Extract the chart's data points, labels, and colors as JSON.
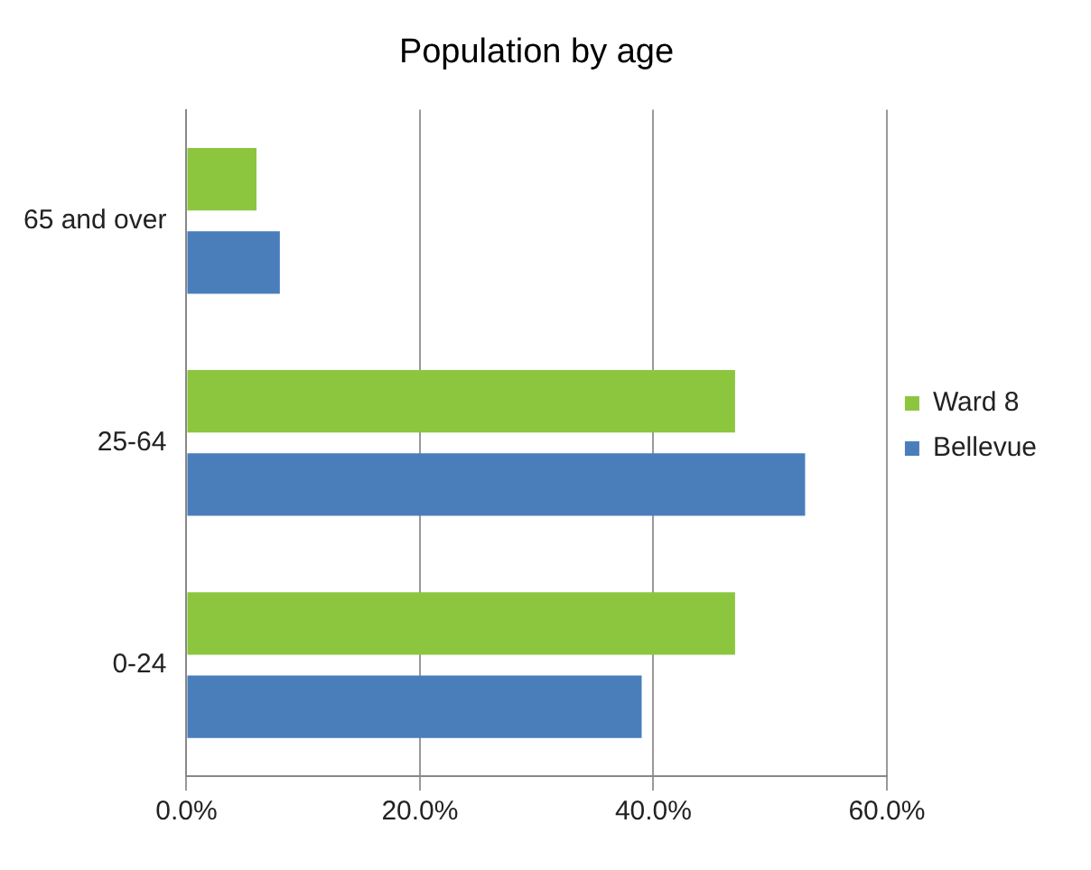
{
  "chart_data": {
    "type": "bar",
    "orientation": "horizontal",
    "title": "Population by age",
    "categories": [
      "65 and over",
      "25-64",
      "0-24"
    ],
    "series": [
      {
        "name": "Ward 8",
        "color": "#8cc63f",
        "values": [
          6,
          47,
          47
        ]
      },
      {
        "name": "Bellevue",
        "color": "#4a7ebb",
        "values": [
          8,
          53,
          39
        ]
      }
    ],
    "xlim": [
      0,
      60
    ],
    "xticks": [
      {
        "value": 0,
        "label": "0.0%"
      },
      {
        "value": 20,
        "label": "20.0%"
      },
      {
        "value": 40,
        "label": "40.0%"
      },
      {
        "value": 60,
        "label": "60.0%"
      }
    ],
    "grid": "x",
    "legend": "right"
  }
}
